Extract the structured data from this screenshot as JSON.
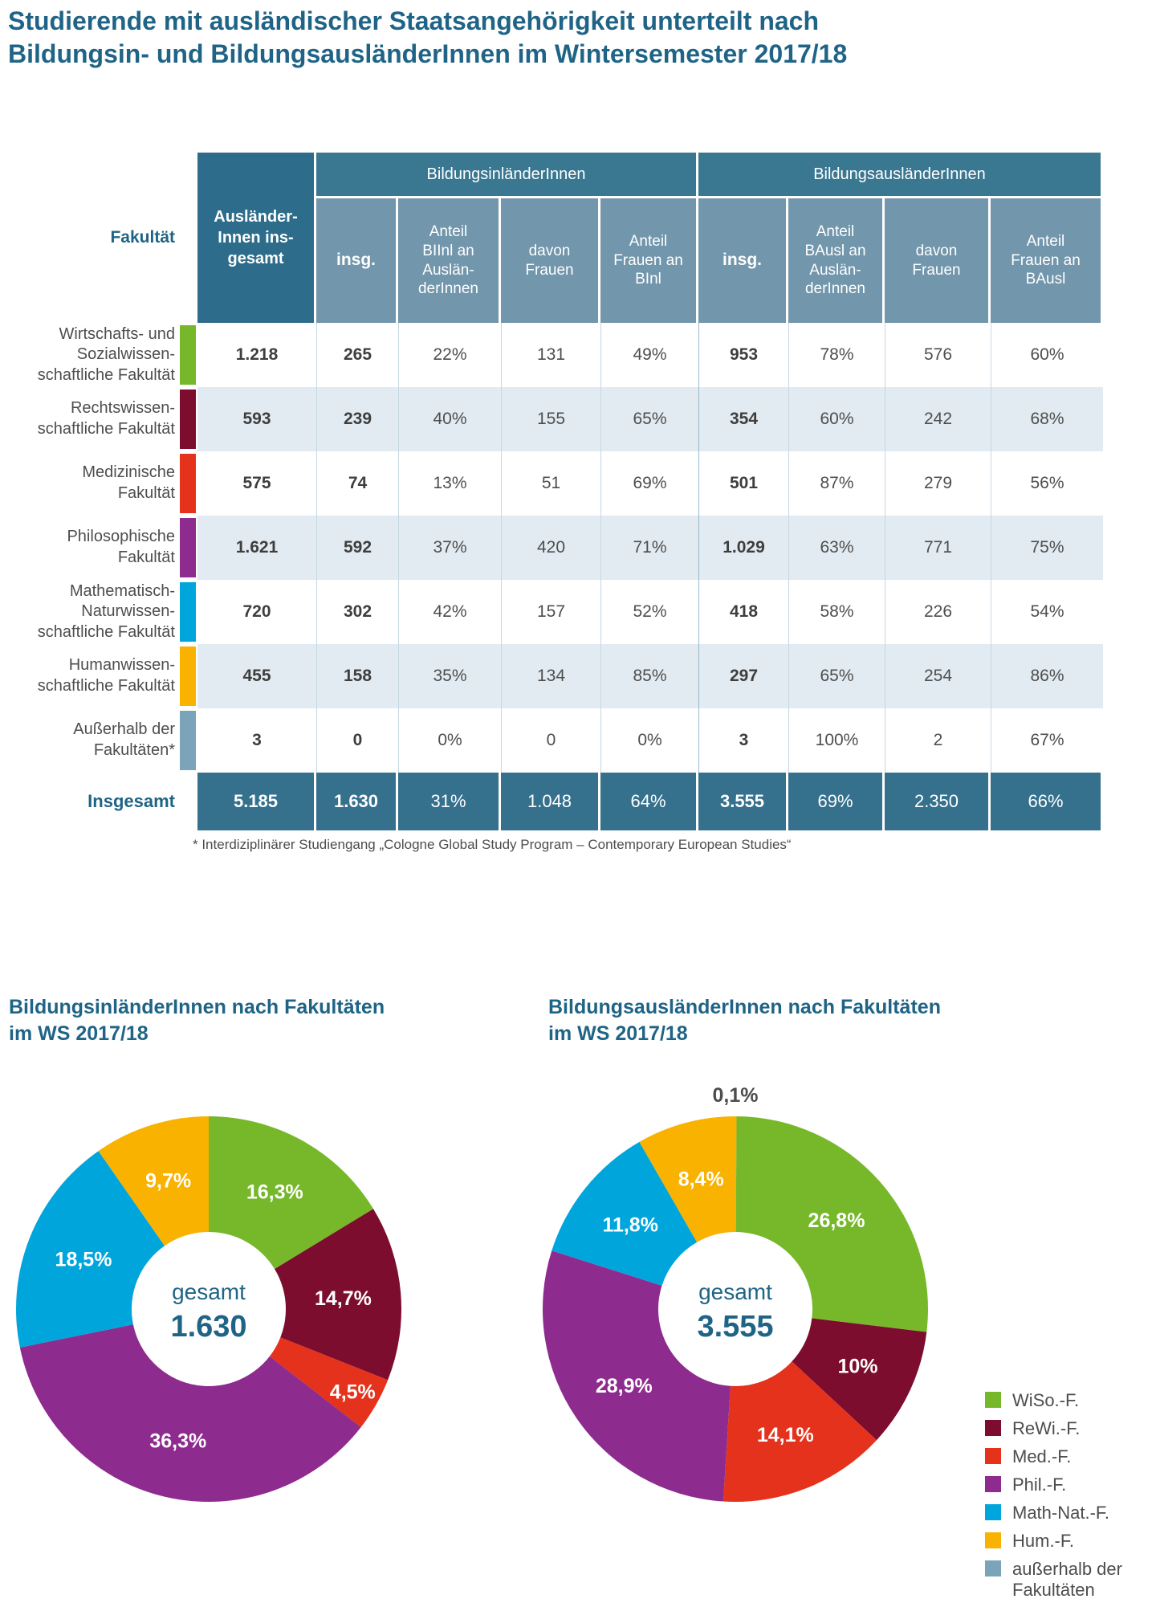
{
  "title": "Studierende mit ausländischer Staatsangehörigkeit unterteilt nach\nBildungsin- und BildungsausländerInnen im Wintersemester 2017/18",
  "colors": {
    "title_text": "#1f6486",
    "header_group": "#3a7791",
    "header_sub": "#7296ab",
    "header_dark_col": "#2d6d8b",
    "total_row": "#35708d",
    "alt_row": "#e2ebf1",
    "wiso_green": "#76b82a",
    "rewi_darkred": "#7c0d2e",
    "med_red": "#e5321c",
    "phil_purple": "#8e2b8e",
    "mathnat_blue": "#00a5dc",
    "hum_orange": "#f9b200",
    "ausserhalb_grayblue": "#7ba3ba"
  },
  "table": {
    "corner_label": "Fakultät",
    "col0_header": "Ausländer-\nInnen ins-\ngesamt",
    "groups": [
      {
        "label": "BildungsinländerInnen"
      },
      {
        "label": "BildungsausländerInnen"
      }
    ],
    "subheaders": [
      "insg.",
      "Anteil\nBIInl an\nAuslän-\nderInnen",
      "davon\nFrauen",
      "Anteil\nFrauen an\nBInl",
      "insg.",
      "Anteil\nBAusl an\nAuslän-\nderInnen",
      "davon\nFrauen",
      "Anteil\nFrauen an\nBAusl"
    ],
    "rows": [
      {
        "label": "Wirtschafts- und\nSozialwissen-\nschaftliche Fakultät",
        "marker": "#76b82a",
        "values": [
          "1.218",
          "265",
          "22%",
          "131",
          "49%",
          "953",
          "78%",
          "576",
          "60%"
        ]
      },
      {
        "label": "Rechtswissen-\nschaftliche Fakultät",
        "marker": "#7c0d2e",
        "values": [
          "593",
          "239",
          "40%",
          "155",
          "65%",
          "354",
          "60%",
          "242",
          "68%"
        ]
      },
      {
        "label": "Medizinische\nFakultät",
        "marker": "#e5321c",
        "values": [
          "575",
          "74",
          "13%",
          "51",
          "69%",
          "501",
          "87%",
          "279",
          "56%"
        ]
      },
      {
        "label": "Philosophische\nFakultät",
        "marker": "#8e2b8e",
        "values": [
          "1.621",
          "592",
          "37%",
          "420",
          "71%",
          "1.029",
          "63%",
          "771",
          "75%"
        ]
      },
      {
        "label": "Mathematisch-\nNaturwissen-\nschaftliche Fakultät",
        "marker": "#00a5dc",
        "values": [
          "720",
          "302",
          "42%",
          "157",
          "52%",
          "418",
          "58%",
          "226",
          "54%"
        ]
      },
      {
        "label": "Humanwissen-\nschaftliche Fakultät",
        "marker": "#f9b200",
        "values": [
          "455",
          "158",
          "35%",
          "134",
          "85%",
          "297",
          "65%",
          "254",
          "86%"
        ]
      },
      {
        "label": "Außerhalb der\nFakultäten*",
        "marker": "#7ba3ba",
        "values": [
          "3",
          "0",
          "0%",
          "0",
          "0%",
          "3",
          "100%",
          "2",
          "67%"
        ]
      }
    ],
    "total": {
      "label": "Insgesamt",
      "values": [
        "5.185",
        "1.630",
        "31%",
        "1.048",
        "64%",
        "3.555",
        "69%",
        "2.350",
        "66%"
      ]
    },
    "footnote": "* Interdiziplinärer Studiengang „Cologne Global Study Program – Contemporary European Studies“"
  },
  "chart_data": [
    {
      "type": "pie",
      "variant": "donut",
      "title": "BildungsinländerInnen nach Fakultäten im WS 2017/18",
      "title_display": "BildungsinländerInnen nach Fakultäten\nim WS 2017/18",
      "center_label": "gesamt",
      "center_value": "1.630",
      "legend_position": "shared-right",
      "slices": [
        {
          "name": "WiSo.-F.",
          "pct": 16.3,
          "label": "16,3%",
          "color": "#76b82a"
        },
        {
          "name": "ReWi.-F.",
          "pct": 14.7,
          "label": "14,7%",
          "color": "#7c0d2e"
        },
        {
          "name": "Med.-F.",
          "pct": 4.5,
          "label": "4,5%",
          "color": "#e5321c"
        },
        {
          "name": "Phil.-F.",
          "pct": 36.3,
          "label": "36,3%",
          "color": "#8e2b8e"
        },
        {
          "name": "Math-Nat.-F.",
          "pct": 18.5,
          "label": "18,5%",
          "color": "#00a5dc"
        },
        {
          "name": "Hum.-F.",
          "pct": 9.7,
          "label": "9,7%",
          "color": "#f9b200"
        }
      ]
    },
    {
      "type": "pie",
      "variant": "donut",
      "title": "BildungsausländerInnen nach Fakultäten im WS 2017/18",
      "title_display": "BildungsausländerInnen nach Fakultäten\nim WS 2017/18",
      "center_label": "gesamt",
      "center_value": "3.555",
      "legend_position": "shared-right",
      "slices": [
        {
          "name": "außerhalb der Fakultäten",
          "pct": 0.1,
          "label": "0,1%",
          "color": "#7ba3ba",
          "label_outside": true
        },
        {
          "name": "WiSo.-F.",
          "pct": 26.8,
          "label": "26,8%",
          "color": "#76b82a"
        },
        {
          "name": "ReWi.-F.",
          "pct": 10.0,
          "label": "10%",
          "color": "#7c0d2e"
        },
        {
          "name": "Med.-F.",
          "pct": 14.1,
          "label": "14,1%",
          "color": "#e5321c"
        },
        {
          "name": "Phil.-F.",
          "pct": 28.9,
          "label": "28,9%",
          "color": "#8e2b8e"
        },
        {
          "name": "Math-Nat.-F.",
          "pct": 11.8,
          "label": "11,8%",
          "color": "#00a5dc"
        },
        {
          "name": "Hum.-F.",
          "pct": 8.4,
          "label": "8,4%",
          "color": "#f9b200"
        }
      ]
    }
  ],
  "legend": {
    "items": [
      {
        "label": "WiSo.-F.",
        "color": "#76b82a"
      },
      {
        "label": "ReWi.-F.",
        "color": "#7c0d2e"
      },
      {
        "label": "Med.-F.",
        "color": "#e5321c"
      },
      {
        "label": "Phil.-F.",
        "color": "#8e2b8e"
      },
      {
        "label": "Math-Nat.-F.",
        "color": "#00a5dc"
      },
      {
        "label": "Hum.-F.",
        "color": "#f9b200"
      },
      {
        "label": "außerhalb der Fakultäten",
        "color": "#7ba3ba"
      }
    ]
  }
}
